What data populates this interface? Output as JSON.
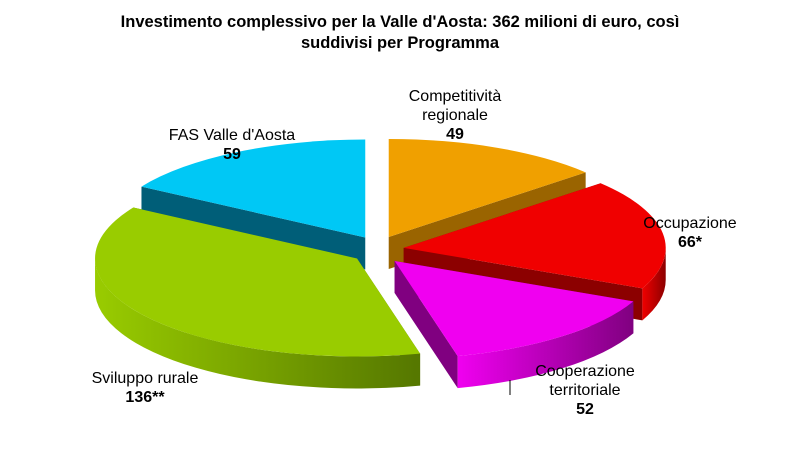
{
  "chart_data": {
    "type": "pie",
    "title_lines": [
      "Investimento complessivo per la Valle d'Aosta: 362 milioni di euro, così",
      "suddivisi per  Programma"
    ],
    "slices": [
      {
        "label_lines": [
          "Competitività",
          "regionale"
        ],
        "value": 49,
        "value_label": "49",
        "color": "#F0A000",
        "side_color": "#9A6400"
      },
      {
        "label_lines": [
          "Occupazione"
        ],
        "value": 66,
        "value_label": "66*",
        "color": "#F00000",
        "side_color": "#8C0000"
      },
      {
        "label_lines": [
          "Cooperazione",
          "territoriale"
        ],
        "value": 52,
        "value_label": "52",
        "color": "#F000F0",
        "side_color": "#800080"
      },
      {
        "label_lines": [
          "Sviluppo rurale"
        ],
        "value": 136,
        "value_label": "136**",
        "color": "#99CC00",
        "side_color": "#557700"
      },
      {
        "label_lines": [
          "FAS Valle d'Aosta"
        ],
        "value": 59,
        "value_label": "59",
        "color": "#00C8F5",
        "side_color": "#005E78"
      }
    ],
    "legend": "none",
    "style": "3d-exploded"
  }
}
